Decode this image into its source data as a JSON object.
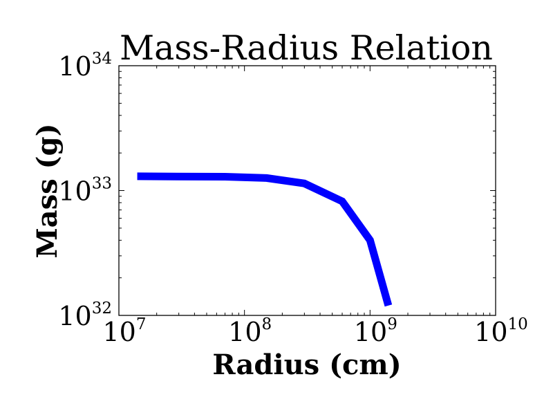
{
  "chart_data": {
    "type": "line",
    "title": "Mass-Radius Relation",
    "xlabel": "Radius (cm)",
    "ylabel": "Mass (g)",
    "xscale": "log",
    "yscale": "log",
    "xlim": [
      10000000,
      10000000000
    ],
    "ylim": [
      1e+32,
      1e+34
    ],
    "x_ticks": [
      {
        "value": 10000000,
        "base": "10",
        "exp": "7"
      },
      {
        "value": 100000000,
        "base": "10",
        "exp": "8"
      },
      {
        "value": 1000000000,
        "base": "10",
        "exp": "9"
      },
      {
        "value": 10000000000,
        "base": "10",
        "exp": "10"
      }
    ],
    "y_ticks": [
      {
        "value": 1e+32,
        "base": "10",
        "exp": "32"
      },
      {
        "value": 1e+33,
        "base": "10",
        "exp": "33"
      },
      {
        "value": 1e+34,
        "base": "10",
        "exp": "34"
      }
    ],
    "grid": false,
    "series": [
      {
        "color": "#0000ff",
        "x": [
          14000000,
          70000000,
          150000000,
          300000000,
          600000000,
          1000000000,
          1400000000
        ],
        "y": [
          1.3e+33,
          1.29e+33,
          1.26e+33,
          1.14e+33,
          8.2e+32,
          4e+32,
          1.2e+32
        ]
      }
    ]
  }
}
